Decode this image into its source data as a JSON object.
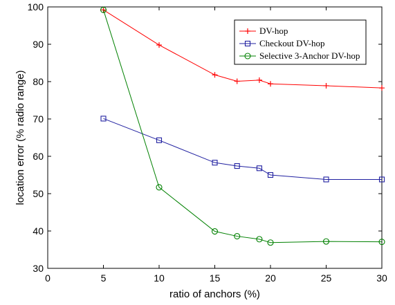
{
  "chart_data": {
    "type": "line",
    "title": "",
    "xlabel": "ratio of anchors (%)",
    "ylabel": "location error (% radio range)",
    "xlim": [
      0,
      30
    ],
    "ylim": [
      30,
      100
    ],
    "xticks": [
      0,
      5,
      10,
      15,
      20,
      25,
      30
    ],
    "yticks": [
      30,
      40,
      50,
      60,
      70,
      80,
      90,
      100
    ],
    "grid": false,
    "legend_position": "top-right",
    "series": [
      {
        "name": "DV-hop",
        "color": "#ff0000",
        "marker": "plus",
        "x": [
          5,
          10,
          15,
          17,
          19,
          20,
          25,
          30
        ],
        "y": [
          99.2,
          89.8,
          81.8,
          80.1,
          80.4,
          79.4,
          78.9,
          78.3
        ]
      },
      {
        "name": "Checkout DV-hop",
        "color": "#1f1fa0",
        "marker": "square",
        "x": [
          5,
          10,
          15,
          17,
          19,
          20,
          25,
          30
        ],
        "y": [
          70.1,
          64.3,
          58.3,
          57.4,
          56.8,
          55.0,
          53.8,
          53.8
        ]
      },
      {
        "name": "Selective 3-Anchor DV-hop",
        "color": "#008000",
        "marker": "circle",
        "x": [
          5,
          10,
          15,
          17,
          19,
          20,
          25,
          30
        ],
        "y": [
          99.2,
          51.7,
          39.9,
          38.6,
          37.8,
          36.9,
          37.2,
          37.1
        ]
      }
    ]
  }
}
